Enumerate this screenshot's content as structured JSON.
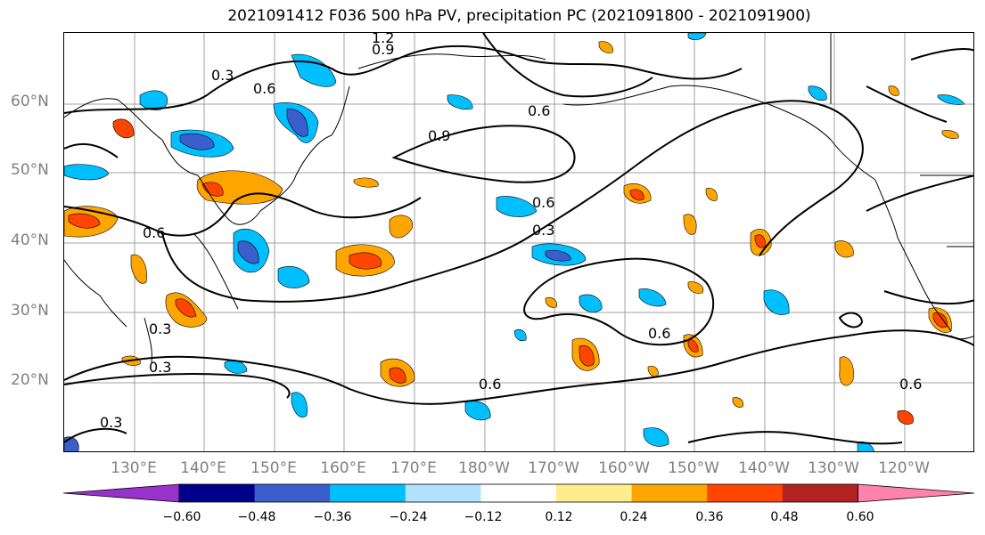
{
  "title": "2021091412 F036 500 hPa PV, precipitation PC (2021091800 - 2021091900)",
  "lat_labels": [
    "60°N",
    "50°N",
    "40°N",
    "30°N",
    "20°N"
  ],
  "lon_labels": [
    "130°E",
    "140°E",
    "150°E",
    "160°E",
    "170°E",
    "180°W",
    "170°W",
    "160°W",
    "150°W",
    "140°W",
    "130°W",
    "120°W"
  ],
  "contour_labels": [
    "0.3",
    "0.6",
    "0.9",
    "1.2",
    "0.3",
    "0.6",
    "0.9",
    "0.6",
    "0.3",
    "0.3",
    "0.6",
    "0.6",
    "0.6",
    "0.3",
    "0.6"
  ],
  "colorbar": {
    "colors": [
      "#9932cc",
      "#00008b",
      "#3a5fcd",
      "#00bfff",
      "#b0e2ff",
      "#ffffff",
      "#ffec8b",
      "#ffa500",
      "#ff4500",
      "#b22222",
      "#ff82ab"
    ],
    "ticks": [
      "−0.60",
      "−0.48",
      "−0.36",
      "−0.24",
      "−0.12",
      "0.12",
      "0.24",
      "0.36",
      "0.48",
      "0.60"
    ]
  },
  "chart_data": {
    "type": "heatmap",
    "variables": [
      "500 hPa PV",
      "precipitation PC"
    ],
    "contour_levels": [
      0.3,
      0.6,
      0.9,
      1.2
    ],
    "color_levels": [
      -0.6,
      -0.48,
      -0.36,
      -0.24,
      -0.12,
      0.12,
      0.24,
      0.36,
      0.48,
      0.6
    ],
    "lat_range": [
      10,
      70
    ],
    "lon_range": [
      120,
      250
    ],
    "gridlines": true
  }
}
